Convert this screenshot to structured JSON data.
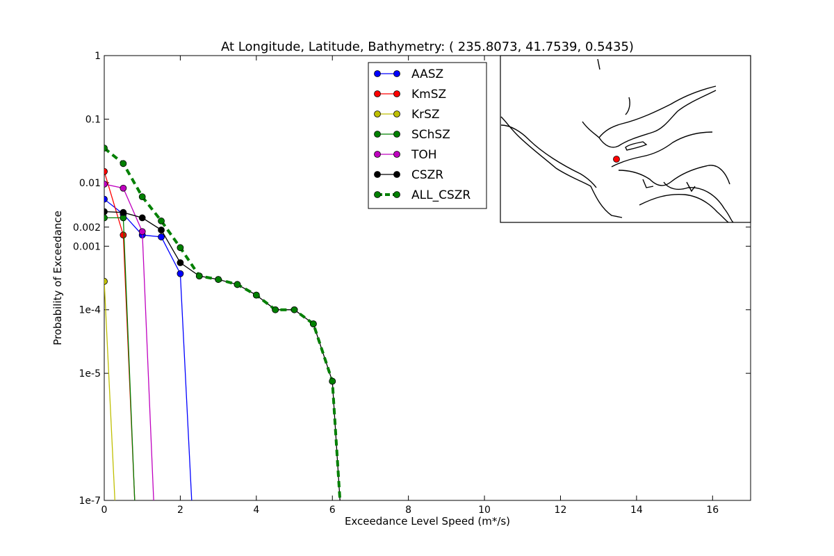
{
  "chart_data": {
    "type": "line",
    "title": "At Longitude, Latitude, Bathymetry:  ( 235.8073,  41.7539,   0.5435)",
    "xlabel": "Exceedance Level Speed (m*/s)",
    "ylabel": "Probability of Exceedance",
    "xscale": "linear",
    "yscale": "log",
    "xlim": [
      0,
      17
    ],
    "ylim": [
      1e-07,
      1
    ],
    "xticks": [
      0,
      2,
      4,
      6,
      8,
      10,
      12,
      14,
      16
    ],
    "xtick_labels": [
      "0",
      "2",
      "4",
      "6",
      "8",
      "10",
      "12",
      "14",
      "16"
    ],
    "yticks": [
      1e-07,
      1e-05,
      0.0001,
      0.001,
      0.002,
      0.01,
      0.1,
      1
    ],
    "ytick_labels": [
      "1e-7",
      "1e-5",
      "1e-4",
      "0.001",
      "0.002",
      "0.01",
      "0.1",
      "1"
    ],
    "legend_position": "top-right",
    "series": [
      {
        "name": "AASZ",
        "color": "#0000ff",
        "dashed": false,
        "x": [
          0,
          0.5,
          1.0,
          1.5,
          2.0,
          2.3
        ],
        "y": [
          0.0055,
          0.0032,
          0.0015,
          0.0014,
          0.00037,
          1e-07
        ]
      },
      {
        "name": "KmSZ",
        "color": "#ff0000",
        "dashed": false,
        "x": [
          0,
          0.5,
          0.8
        ],
        "y": [
          0.015,
          0.0015,
          1e-07
        ]
      },
      {
        "name": "KrSZ",
        "color": "#bfbf00",
        "dashed": false,
        "x": [
          0,
          0.28
        ],
        "y": [
          0.00028,
          1e-07
        ]
      },
      {
        "name": "SChSZ",
        "color": "#008000",
        "dashed": false,
        "x": [
          0,
          0.5,
          0.8
        ],
        "y": [
          0.0028,
          0.0028,
          1e-07
        ]
      },
      {
        "name": "TOH",
        "color": "#bf00bf",
        "dashed": false,
        "x": [
          0,
          0.5,
          1.0,
          1.3
        ],
        "y": [
          0.0095,
          0.0082,
          0.0017,
          1e-07
        ]
      },
      {
        "name": "CSZR",
        "color": "#000000",
        "dashed": false,
        "x": [
          0,
          0.5,
          1.0,
          1.5,
          2.0,
          2.5,
          3.0,
          3.5,
          4.0,
          4.5,
          5.0,
          5.5,
          6.0,
          6.2
        ],
        "y": [
          0.0035,
          0.0034,
          0.0028,
          0.0018,
          0.00055,
          0.00034,
          0.0003,
          0.00025,
          0.00017,
          0.0001,
          0.0001,
          6e-05,
          7.5e-06,
          1e-07
        ]
      },
      {
        "name": "ALL_CSZR",
        "color": "#008000",
        "dashed": true,
        "x": [
          0,
          0.5,
          1.0,
          1.5,
          2.0,
          2.5,
          3.0,
          3.5,
          4.0,
          4.5,
          5.0,
          5.5,
          6.0,
          6.2
        ],
        "y": [
          0.035,
          0.02,
          0.006,
          0.0025,
          0.00095,
          0.00034,
          0.0003,
          0.00025,
          0.00017,
          0.0001,
          0.0001,
          6e-05,
          7.5e-06,
          1e-07
        ]
      }
    ],
    "inset": {
      "type": "coastline-map",
      "marker_color": "#ff0000",
      "line_color": "#000000"
    }
  }
}
